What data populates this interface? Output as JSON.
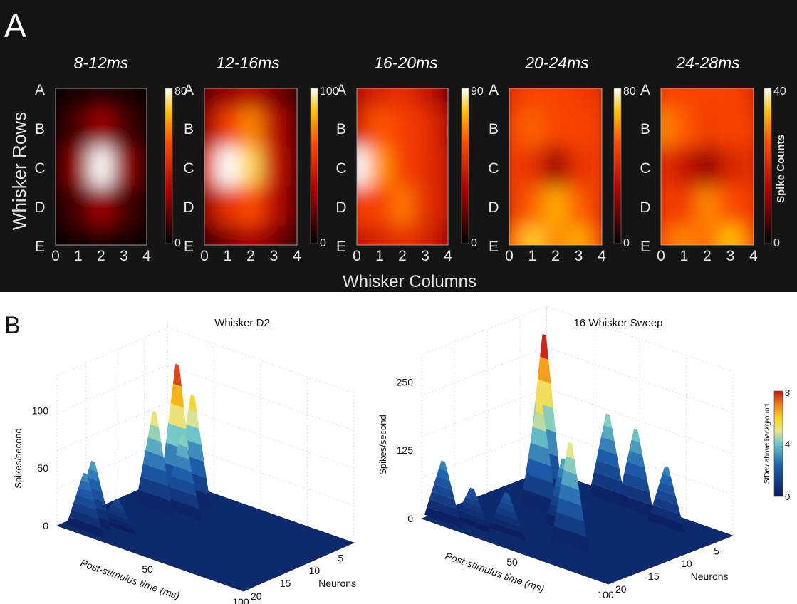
{
  "panel_a": {
    "letter": "A",
    "ylabel": "Whisker Rows",
    "xlabel": "Whisker Columns",
    "colorbar_label": "Spike Counts",
    "row_labels": [
      "A",
      "B",
      "C",
      "D",
      "E"
    ],
    "col_labels": [
      "0",
      "1",
      "2",
      "3",
      "4"
    ]
  },
  "panel_b": {
    "letter": "B",
    "left_title": "Whisker D2",
    "right_title": "16 Whisker Sweep",
    "zlabel": "Spikes/second",
    "xlabel": "Post-stimulus time (ms)",
    "ylabel": "Neurons",
    "colorbar_label": "StDev above background",
    "colorbar_ticks": [
      "8",
      "4",
      "0"
    ]
  },
  "chart_data": [
    {
      "type": "heatmap",
      "title": "8-12ms",
      "colorbar_max": 80,
      "colorbar_min": 0,
      "rows": [
        "A",
        "B",
        "C",
        "D",
        "E"
      ],
      "columns": [
        0,
        1,
        2,
        3,
        4
      ],
      "values": [
        [
          2,
          3,
          5,
          3,
          2
        ],
        [
          4,
          12,
          25,
          12,
          4
        ],
        [
          6,
          25,
          80,
          25,
          6
        ],
        [
          4,
          12,
          25,
          12,
          4
        ],
        [
          2,
          3,
          5,
          3,
          2
        ]
      ]
    },
    {
      "type": "heatmap",
      "title": "12-16ms",
      "colorbar_max": 100,
      "colorbar_min": 0,
      "rows": [
        "A",
        "B",
        "C",
        "D",
        "E"
      ],
      "columns": [
        0,
        1,
        2,
        3,
        4
      ],
      "values": [
        [
          20,
          30,
          35,
          25,
          12
        ],
        [
          30,
          60,
          75,
          40,
          18
        ],
        [
          55,
          100,
          90,
          45,
          20
        ],
        [
          30,
          55,
          65,
          40,
          18
        ],
        [
          12,
          25,
          35,
          25,
          10
        ]
      ]
    },
    {
      "type": "heatmap",
      "title": "16-20ms",
      "colorbar_max": 90,
      "colorbar_min": 0,
      "rows": [
        "A",
        "B",
        "C",
        "D",
        "E"
      ],
      "columns": [
        0,
        1,
        2,
        3,
        4
      ],
      "values": [
        [
          35,
          45,
          50,
          40,
          25
        ],
        [
          45,
          60,
          55,
          50,
          35
        ],
        [
          90,
          70,
          55,
          50,
          40
        ],
        [
          55,
          55,
          65,
          50,
          40
        ],
        [
          40,
          45,
          50,
          45,
          30
        ]
      ]
    },
    {
      "type": "heatmap",
      "title": "20-24ms",
      "colorbar_max": 80,
      "colorbar_min": 0,
      "rows": [
        "A",
        "B",
        "C",
        "D",
        "E"
      ],
      "columns": [
        0,
        1,
        2,
        3,
        4
      ],
      "values": [
        [
          45,
          50,
          50,
          48,
          45
        ],
        [
          50,
          55,
          50,
          50,
          48
        ],
        [
          48,
          45,
          25,
          45,
          48
        ],
        [
          45,
          55,
          65,
          55,
          45
        ],
        [
          55,
          70,
          60,
          65,
          50
        ]
      ]
    },
    {
      "type": "heatmap",
      "title": "24-28ms",
      "colorbar_max": 40,
      "colorbar_min": 0,
      "rows": [
        "A",
        "B",
        "C",
        "D",
        "E"
      ],
      "columns": [
        0,
        1,
        2,
        3,
        4
      ],
      "values": [
        [
          25,
          25,
          25,
          25,
          22
        ],
        [
          30,
          27,
          24,
          25,
          24
        ],
        [
          22,
          18,
          12,
          20,
          22
        ],
        [
          24,
          24,
          30,
          26,
          24
        ],
        [
          27,
          30,
          28,
          34,
          27
        ]
      ]
    },
    {
      "type": "surface",
      "title": "Whisker D2",
      "x_label": "Post-stimulus time (ms)",
      "x_ticks": [
        50,
        100
      ],
      "y_label": "Neurons",
      "y_ticks": [
        5,
        10,
        15,
        20
      ],
      "z_label": "Spikes/second",
      "z_ticks": [
        0,
        50,
        100
      ],
      "zlim": [
        0,
        130
      ],
      "peaks": [
        {
          "time": 10,
          "neuron": 17,
          "rate": 55
        },
        {
          "time": 12,
          "neuron": 19,
          "rate": 50
        },
        {
          "time": 20,
          "neuron": 16,
          "rate": 25
        },
        {
          "time": 18,
          "neuron": 9,
          "rate": 85
        },
        {
          "time": 24,
          "neuron": 7,
          "rate": 125
        },
        {
          "time": 26,
          "neuron": 5,
          "rate": 95
        },
        {
          "time": 30,
          "neuron": 8,
          "rate": 70
        }
      ]
    },
    {
      "type": "surface",
      "title": "16 Whisker Sweep",
      "x_label": "Post-stimulus time (ms)",
      "x_ticks": [
        50,
        100
      ],
      "y_label": "Neurons",
      "y_ticks": [
        5,
        10,
        15,
        20
      ],
      "z_label": "Spikes/second",
      "z_ticks": [
        0,
        125,
        250
      ],
      "zlim": [
        0,
        300
      ],
      "peaks": [
        {
          "time": 8,
          "neuron": 19,
          "rate": 110
        },
        {
          "time": 20,
          "neuron": 18,
          "rate": 70
        },
        {
          "time": 35,
          "neuron": 17,
          "rate": 75
        },
        {
          "time": 20,
          "neuron": 7,
          "rate": 300
        },
        {
          "time": 28,
          "neuron": 10,
          "rate": 210
        },
        {
          "time": 40,
          "neuron": 3,
          "rate": 160
        },
        {
          "time": 55,
          "neuron": 3,
          "rate": 150
        },
        {
          "time": 48,
          "neuron": 12,
          "rate": 130
        },
        {
          "time": 62,
          "neuron": 15,
          "rate": 190
        },
        {
          "time": 75,
          "neuron": 4,
          "rate": 110
        }
      ]
    }
  ]
}
